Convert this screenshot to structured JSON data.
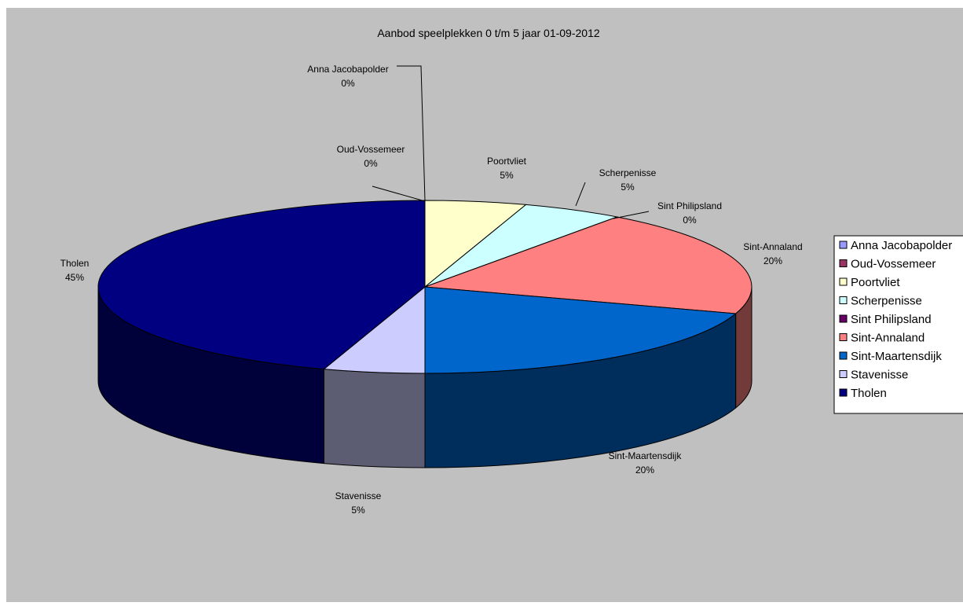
{
  "chart_data": {
    "type": "pie",
    "title": "Aanbod speelplekken 0 t/m 5 jaar 01-09-2012",
    "three_d": true,
    "legend_position": "right",
    "slices": [
      {
        "label": "Anna Jacobapolder",
        "value": 0,
        "pct_label": "0%",
        "color": "#9999FF"
      },
      {
        "label": "Oud-Vossemeer",
        "value": 0,
        "pct_label": "0%",
        "color": "#993366"
      },
      {
        "label": "Poortvliet",
        "value": 5,
        "pct_label": "5%",
        "color": "#FFFFCC"
      },
      {
        "label": "Scherpenisse",
        "value": 5,
        "pct_label": "5%",
        "color": "#CCFFFF"
      },
      {
        "label": "Sint Philipsland",
        "value": 0,
        "pct_label": "0%",
        "color": "#660066"
      },
      {
        "label": "Sint-Annaland",
        "value": 20,
        "pct_label": "20%",
        "color": "#FF8080"
      },
      {
        "label": "Sint-Maartensdijk",
        "value": 20,
        "pct_label": "20%",
        "color": "#0066CC"
      },
      {
        "label": "Stavenisse",
        "value": 5,
        "pct_label": "5%",
        "color": "#CCCCFF"
      },
      {
        "label": "Tholen",
        "value": 45,
        "pct_label": "45%",
        "color": "#000080"
      }
    ]
  },
  "colors": {
    "plot_background": "#C0C0C0",
    "page_background": "#FFFFFF"
  }
}
